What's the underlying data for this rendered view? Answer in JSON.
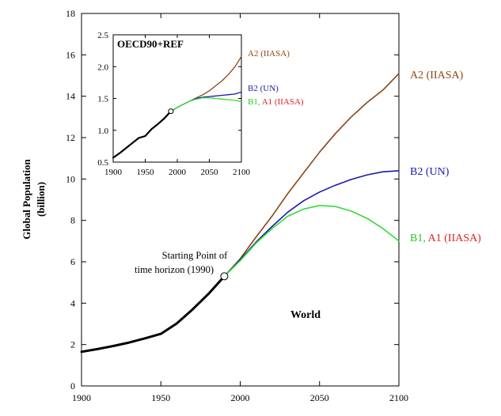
{
  "chart_data": [
    {
      "type": "line",
      "title": "World",
      "xlabel": "",
      "ylabel": "Global Population (billion)",
      "ylabel_lines": [
        "Global Population",
        "(billion)"
      ],
      "xlim": [
        1900,
        2100
      ],
      "ylim": [
        0,
        18
      ],
      "xticks": [
        1900,
        1950,
        2000,
        2050,
        2100
      ],
      "yticks": [
        0,
        2,
        4,
        6,
        8,
        10,
        12,
        14,
        16,
        18
      ],
      "annotation": [
        "Starting Point of",
        "time horizon (1990)"
      ],
      "start_point": {
        "x": 1990,
        "y": 5.3
      },
      "series": [
        {
          "key": "historical",
          "color": "#000000",
          "x": [
            1900,
            1910,
            1920,
            1930,
            1940,
            1950,
            1960,
            1970,
            1980,
            1990
          ],
          "y": [
            1.65,
            1.78,
            1.93,
            2.1,
            2.3,
            2.52,
            3.02,
            3.7,
            4.45,
            5.3
          ]
        },
        {
          "key": "a2",
          "name": "A2 (IIASA)",
          "color": "#8B4513",
          "x": [
            1990,
            2000,
            2010,
            2020,
            2030,
            2040,
            2050,
            2060,
            2070,
            2080,
            2090,
            2100
          ],
          "y": [
            5.3,
            6.15,
            7.2,
            8.2,
            9.3,
            10.3,
            11.3,
            12.2,
            13.0,
            13.7,
            14.3,
            15.1
          ]
        },
        {
          "key": "b2",
          "name": "B2 (UN)",
          "color": "#1a1aa8",
          "x": [
            1990,
            2000,
            2010,
            2020,
            2030,
            2040,
            2050,
            2060,
            2070,
            2080,
            2090,
            2100
          ],
          "y": [
            5.3,
            6.1,
            6.95,
            7.7,
            8.4,
            8.95,
            9.37,
            9.7,
            9.98,
            10.2,
            10.35,
            10.4
          ]
        },
        {
          "key": "b1a1",
          "name_parts": [
            "B1, ",
            "A1 (IIASA)"
          ],
          "colors": [
            "#22cc22",
            "#dd2222"
          ],
          "color": "#33dd33",
          "x": [
            1990,
            2000,
            2010,
            2020,
            2030,
            2040,
            2050,
            2060,
            2070,
            2080,
            2090,
            2100
          ],
          "y": [
            5.3,
            6.05,
            6.9,
            7.6,
            8.2,
            8.55,
            8.72,
            8.67,
            8.45,
            8.1,
            7.6,
            7.0
          ]
        }
      ]
    },
    {
      "type": "line",
      "title": "OECD90+REF",
      "xlim": [
        1900,
        2100
      ],
      "ylim": [
        0.5,
        2.5
      ],
      "xticks": [
        1900,
        1950,
        2000,
        2050,
        2100
      ],
      "yticks": [
        0.5,
        1.0,
        1.5,
        2.0,
        2.5
      ],
      "ytick_labels": [
        "0.5",
        "1.0",
        "1.5",
        "2.0",
        "2.5"
      ],
      "start_point": {
        "x": 1990,
        "y": 1.3
      },
      "series": [
        {
          "key": "historical",
          "color": "#000000",
          "x": [
            1900,
            1910,
            1920,
            1930,
            1940,
            1950,
            1960,
            1970,
            1980,
            1990
          ],
          "y": [
            0.57,
            0.64,
            0.72,
            0.8,
            0.88,
            0.91,
            1.02,
            1.1,
            1.19,
            1.3
          ]
        },
        {
          "key": "a2",
          "name": "A2 (IIASA)",
          "color": "#8B4513",
          "x": [
            1990,
            2000,
            2010,
            2020,
            2030,
            2040,
            2050,
            2060,
            2070,
            2080,
            2090,
            2100
          ],
          "y": [
            1.3,
            1.36,
            1.41,
            1.46,
            1.51,
            1.56,
            1.62,
            1.7,
            1.78,
            1.88,
            2.0,
            2.16
          ]
        },
        {
          "key": "b2",
          "name": "B2 (UN)",
          "color": "#1a1aa8",
          "x": [
            1990,
            2000,
            2010,
            2020,
            2030,
            2040,
            2050,
            2060,
            2070,
            2080,
            2090,
            2100
          ],
          "y": [
            1.3,
            1.36,
            1.41,
            1.46,
            1.5,
            1.52,
            1.53,
            1.54,
            1.55,
            1.56,
            1.57,
            1.6
          ]
        },
        {
          "key": "b1a1",
          "name_parts": [
            "B1, ",
            "A1 (IIASA)"
          ],
          "colors": [
            "#22cc22",
            "#dd2222"
          ],
          "color": "#33dd33",
          "x": [
            1990,
            2000,
            2010,
            2020,
            2030,
            2040,
            2050,
            2060,
            2070,
            2080,
            2090,
            2100
          ],
          "y": [
            1.3,
            1.36,
            1.41,
            1.46,
            1.49,
            1.51,
            1.51,
            1.5,
            1.49,
            1.48,
            1.47,
            1.45
          ]
        }
      ]
    }
  ]
}
